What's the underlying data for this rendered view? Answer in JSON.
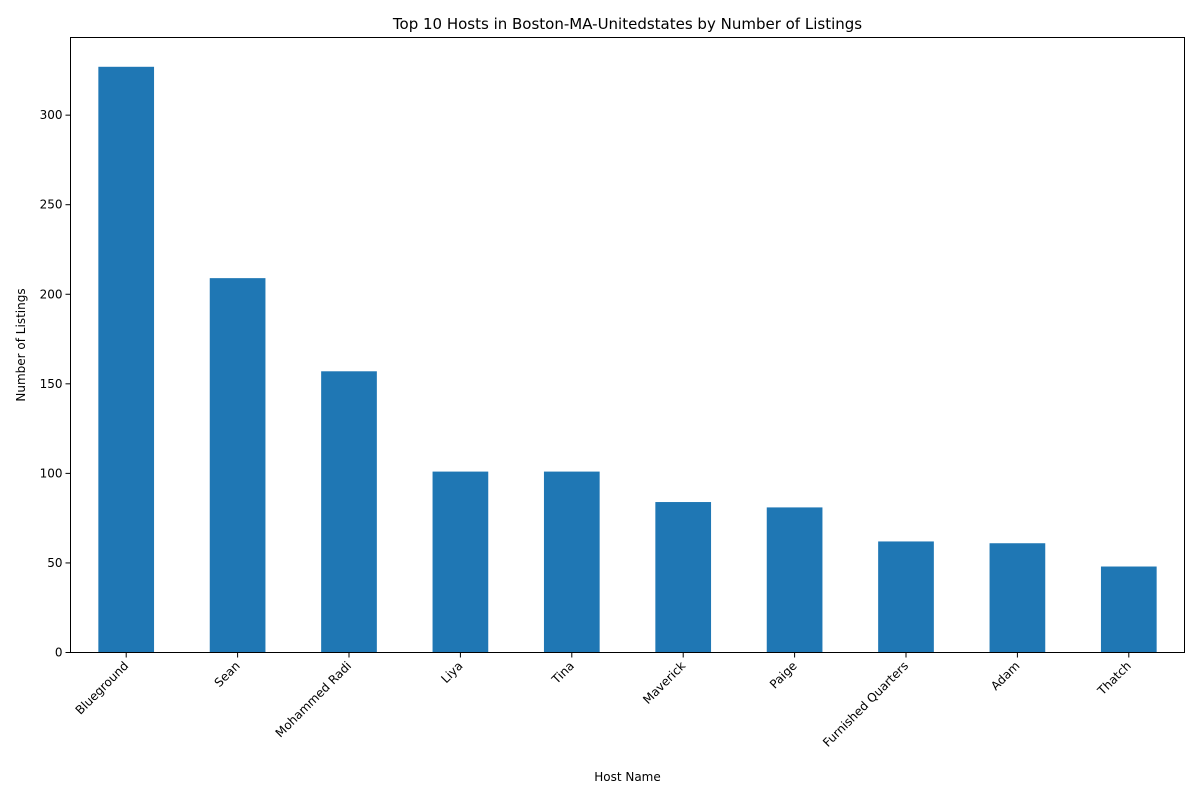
{
  "chart_data": {
    "type": "bar",
    "title": "Top 10 Hosts in Boston-MA-Unitedstates by Number of Listings",
    "xlabel": "Host Name",
    "ylabel": "Number of Listings",
    "categories": [
      "Blueground",
      "Sean",
      "Mohammed Radi",
      "Liya",
      "Tina",
      "Maverick",
      "Paige",
      "Furnished Quarters",
      "Adam",
      "Thatch"
    ],
    "values": [
      327,
      209,
      157,
      101,
      101,
      84,
      81,
      62,
      61,
      48
    ],
    "ylim": [
      0,
      343.35
    ],
    "yticks": [
      0,
      50,
      100,
      150,
      200,
      250,
      300
    ],
    "bar_color": "#1f77b4",
    "grid": false,
    "legend": "none"
  }
}
